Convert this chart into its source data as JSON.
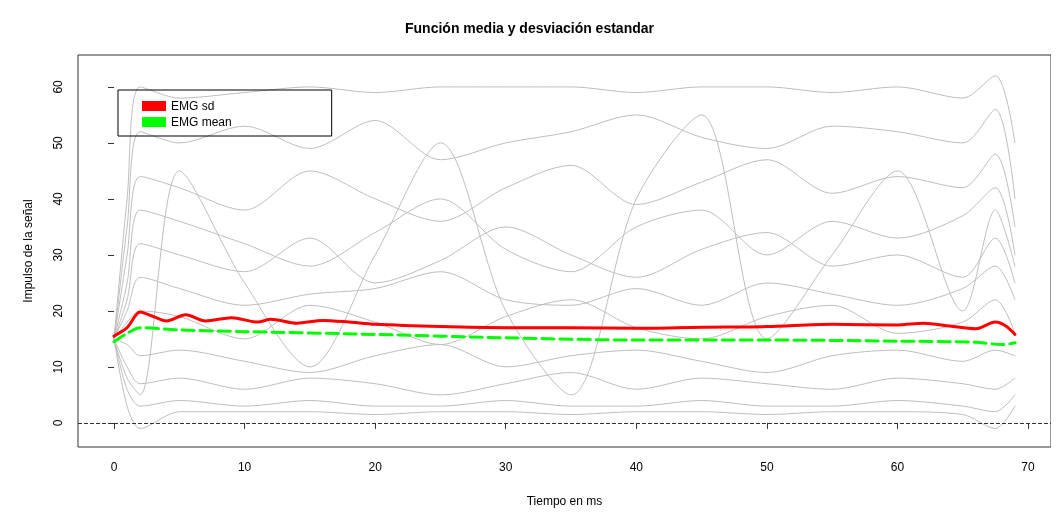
{
  "chart_data": {
    "type": "line",
    "title": "Función media y desviación estandar",
    "xlabel": "Tiempo en ms",
    "ylabel": "Impulso de la señal",
    "xlim": [
      -2.76,
      71.76
    ],
    "ylim": [
      -4.3,
      65.7
    ],
    "xticks": [
      0,
      10,
      20,
      30,
      40,
      50,
      60,
      70
    ],
    "yticks": [
      0,
      10,
      20,
      30,
      40,
      50,
      60
    ],
    "grid": false,
    "legend": "top left",
    "x": [
      0,
      1,
      2,
      5,
      10,
      15,
      20,
      25,
      30,
      35,
      40,
      45,
      50,
      55,
      60,
      65,
      67.5,
      69
    ],
    "ref_lines": [
      {
        "axis": "y",
        "value": 0,
        "color": "#333333",
        "line_style": "dashed"
      }
    ],
    "series": [
      {
        "color": "#bebebe",
        "values": [
          15,
          40,
          60,
          58,
          59,
          60,
          59,
          60,
          60,
          60,
          59,
          60,
          60,
          59,
          60,
          58,
          62,
          50
        ]
      },
      {
        "color": "#bebebe",
        "values": [
          15,
          35,
          52,
          50,
          53,
          49,
          54,
          47,
          50,
          52,
          55,
          51,
          49,
          53,
          52,
          50,
          56,
          40
        ]
      },
      {
        "color": "#bebebe",
        "values": [
          15,
          30,
          44,
          42,
          38,
          45,
          40,
          36,
          42,
          46,
          39,
          43,
          47,
          41,
          44,
          42,
          48,
          35
        ]
      },
      {
        "color": "#bebebe",
        "values": [
          15,
          25,
          38,
          36,
          32,
          28,
          34,
          40,
          31,
          27,
          35,
          38,
          30,
          36,
          33,
          37,
          42,
          30
        ]
      },
      {
        "color": "#bebebe",
        "values": [
          15,
          22,
          32,
          30,
          27,
          33,
          25,
          29,
          35,
          30,
          26,
          31,
          34,
          28,
          30,
          26,
          33,
          25
        ]
      },
      {
        "color": "#bebebe",
        "values": [
          15,
          20,
          26,
          24,
          21,
          23,
          24,
          27,
          22,
          21,
          24,
          21,
          25,
          23,
          21,
          24,
          28,
          22
        ]
      },
      {
        "color": "#bebebe",
        "values": [
          15,
          18,
          20,
          19,
          15,
          21,
          18,
          14,
          19,
          22,
          17,
          15,
          19,
          21,
          16,
          18,
          22,
          16
        ]
      },
      {
        "color": "#bebebe",
        "values": [
          15,
          14,
          12,
          13,
          11,
          9,
          12,
          14,
          10,
          12,
          13,
          11,
          9,
          12,
          13,
          11,
          13,
          12
        ]
      },
      {
        "color": "#bebebe",
        "values": [
          15,
          10,
          7,
          8,
          6,
          8,
          7,
          5,
          7,
          9,
          6,
          8,
          7,
          6,
          8,
          7,
          6,
          8
        ]
      },
      {
        "color": "#bebebe",
        "values": [
          15,
          6,
          3,
          4,
          3,
          4,
          3,
          3,
          4,
          3,
          3,
          4,
          3,
          3,
          4,
          3,
          2,
          5
        ]
      },
      {
        "color": "#bebebe",
        "values": [
          15,
          3,
          -1,
          2,
          2,
          2,
          1.5,
          2,
          2,
          1.5,
          2,
          2,
          1.5,
          2,
          2,
          1.5,
          -1,
          3
        ]
      },
      {
        "color": "#bebebe",
        "values": [
          15,
          8,
          5,
          45,
          25,
          10,
          30,
          50,
          20,
          5,
          40,
          55,
          15,
          30,
          45,
          20,
          38,
          28
        ]
      },
      {
        "name": "EMG sd",
        "color": "#ff0000",
        "line_style": "solid",
        "x": [
          0,
          1,
          2,
          3,
          4,
          5.5,
          7,
          9,
          11,
          12,
          14,
          16,
          18,
          20,
          25,
          30,
          35,
          40,
          45,
          50,
          55,
          60,
          62,
          64,
          66,
          67.5,
          68.3,
          69
        ],
        "values": [
          15.5,
          17,
          19.8,
          19,
          18.2,
          19.3,
          18.2,
          18.8,
          18,
          18.5,
          17.8,
          18.3,
          18,
          17.6,
          17.2,
          17,
          17,
          16.9,
          17.1,
          17.2,
          17.6,
          17.5,
          17.8,
          17.3,
          16.8,
          18,
          17.3,
          15.8
        ]
      },
      {
        "name": "EMG mean",
        "color": "#00ff00",
        "line_style": "dashed",
        "x": [
          0,
          1,
          2,
          5,
          10,
          20,
          30,
          40,
          50,
          60,
          66,
          68,
          69
        ],
        "values": [
          14.5,
          16,
          17,
          16.6,
          16.3,
          15.8,
          15.2,
          14.8,
          14.8,
          14.6,
          14.4,
          14,
          14.3
        ]
      }
    ]
  }
}
